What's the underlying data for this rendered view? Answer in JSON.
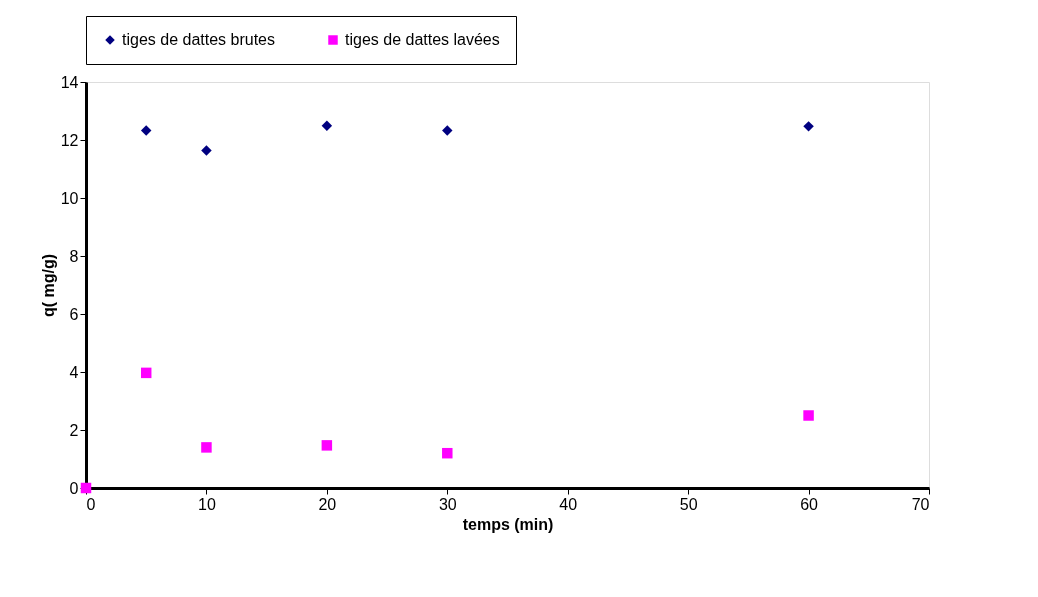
{
  "chart_data": {
    "type": "scatter",
    "xlabel": "temps (min)",
    "ylabel": "q( mg/g)",
    "xlim": [
      0,
      70
    ],
    "xticks": [
      0,
      10,
      20,
      30,
      40,
      50,
      60,
      70
    ],
    "ylim": [
      0,
      14
    ],
    "yticks": [
      0,
      2,
      4,
      6,
      8,
      10,
      12,
      14
    ],
    "grid": false,
    "legend": "top",
    "series": [
      {
        "name": "tiges de dattes brutes",
        "color": "#000080",
        "marker": "diamond",
        "x": [
          5,
          10,
          20,
          30,
          60
        ],
        "values": [
          12.33,
          11.64,
          12.49,
          12.33,
          12.47
        ]
      },
      {
        "name": "tiges de dattes lavées",
        "color": "#ff00ff",
        "marker": "square",
        "x": [
          0,
          5,
          10,
          20,
          30,
          60
        ],
        "values": [
          0,
          3.97,
          1.4,
          1.47,
          1.2,
          2.5
        ]
      }
    ]
  }
}
